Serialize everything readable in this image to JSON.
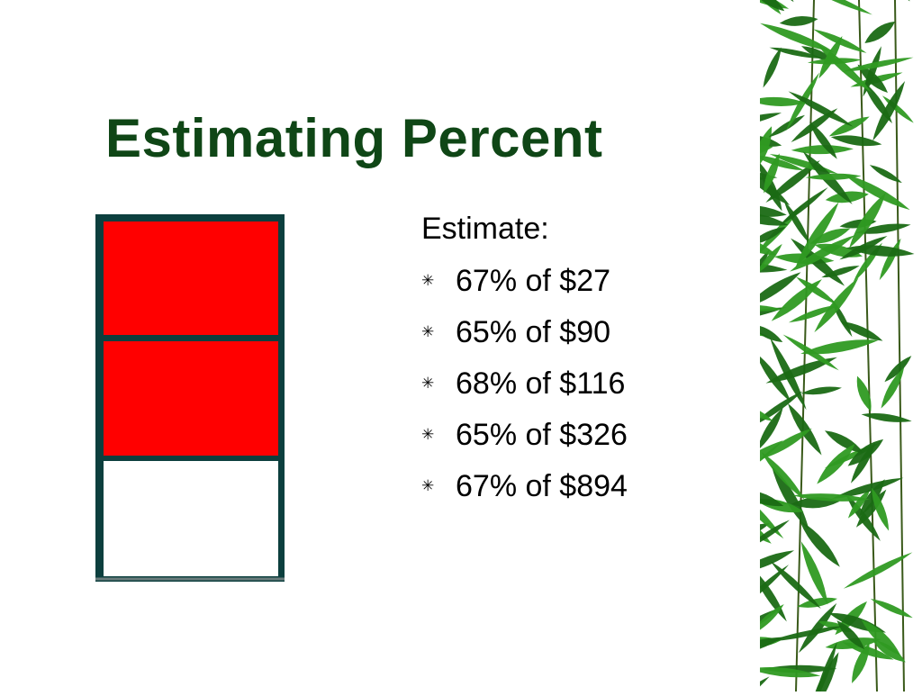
{
  "slide": {
    "title": "Estimating Percent",
    "heading": "Estimate:",
    "bullet_icon": "asterisk-bullet-icon",
    "bullets": [
      "67% of $27",
      "65% of $90",
      "68% of $116",
      "65% of $326",
      "67% of $894"
    ]
  },
  "bar_model": {
    "parts_total": 3,
    "parts_shaded": 2
  },
  "colors": {
    "title": "#0f4616",
    "frame": "#0c3f3e",
    "shaded": "#ff0000",
    "unshaded": "#ffffff",
    "leaf_dark": "#1a6a14",
    "leaf_light": "#2f9a22"
  },
  "decoration": "bamboo-leaves-icon"
}
